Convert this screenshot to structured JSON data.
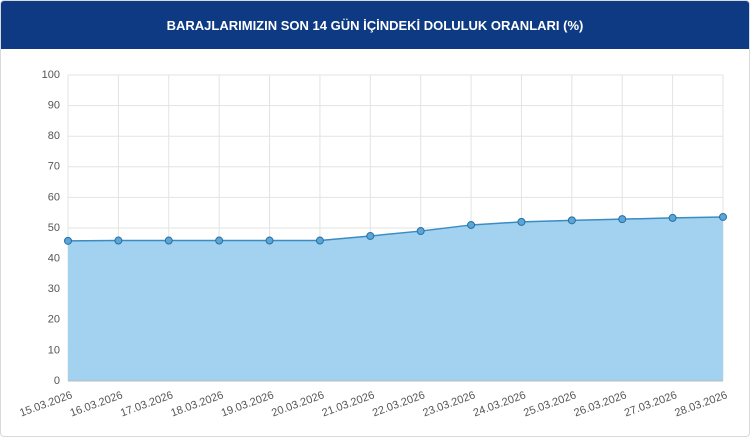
{
  "chart_data": {
    "type": "line",
    "title": "BARAJLARIMIZIN SON 14 GÜN İÇİNDEKİ DOLULUK ORANLARI (%)",
    "categories": [
      "15.03.2026",
      "16.03.2026",
      "17.03.2026",
      "18.03.2026",
      "19.03.2026",
      "20.03.2026",
      "21.03.2026",
      "22.03.2026",
      "23.03.2026",
      "24.03.2026",
      "25.03.2026",
      "26.03.2026",
      "27.03.2026",
      "28.03.2026"
    ],
    "series": [
      {
        "values": [
          45.8,
          45.9,
          45.9,
          45.9,
          45.9,
          45.9,
          47.4,
          49.0,
          51.0,
          52.0,
          52.5,
          52.9,
          53.3,
          53.6
        ],
        "color": "#3a8cc4",
        "fill": "#9dd0ee"
      }
    ],
    "ylim": [
      0,
      100
    ],
    "yticks": [
      0,
      10,
      20,
      30,
      40,
      50,
      60,
      70,
      80,
      90,
      100
    ],
    "grid": true
  }
}
